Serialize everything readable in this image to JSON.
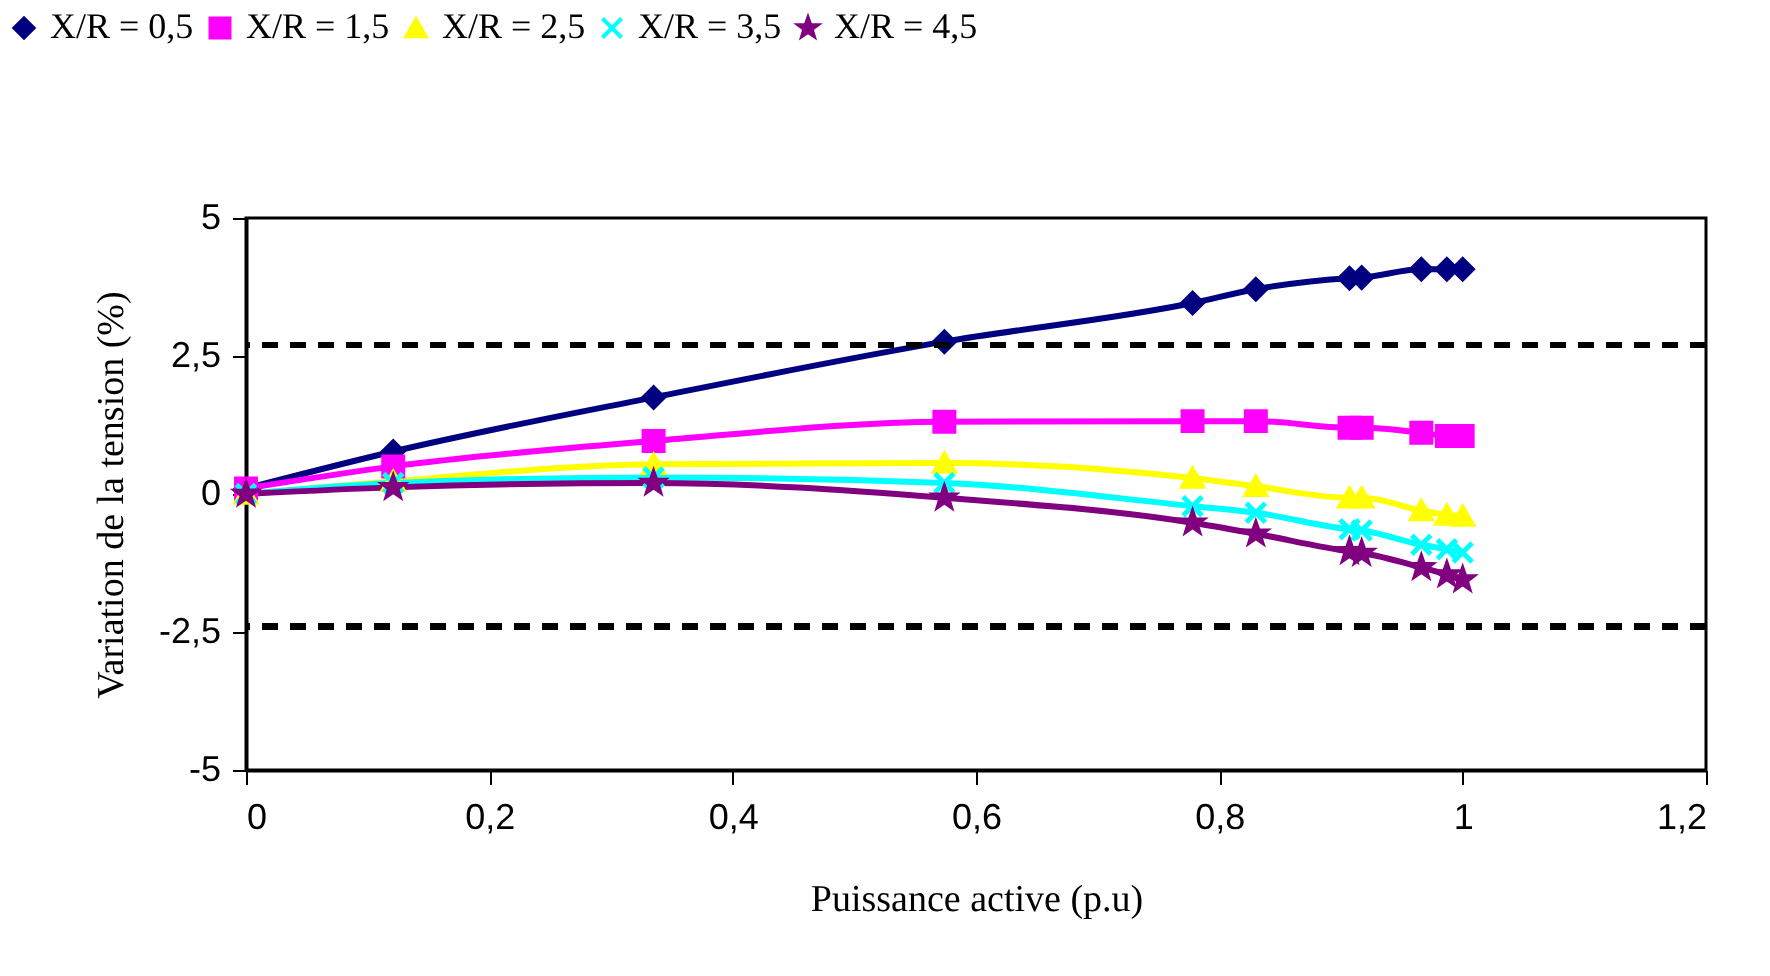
{
  "chart_data": {
    "type": "line",
    "xlabel": "Puissance active (p.u)",
    "ylabel": "Variation de la tension (%)",
    "x": [
      0,
      0.121,
      0.335,
      0.574,
      0.778,
      0.83,
      0.907,
      0.917,
      0.966,
      0.987,
      1.0
    ],
    "series": [
      {
        "name": "X/R = 0,5",
        "color": "#000080",
        "marker": "diamond",
        "values": [
          0.1,
          0.77,
          1.75,
          2.76,
          3.46,
          3.71,
          3.91,
          3.92,
          4.07,
          4.07,
          4.07
        ]
      },
      {
        "name": "X/R = 1,5",
        "color": "#ff00ff",
        "marker": "square",
        "values": [
          0.1,
          0.5,
          0.96,
          1.31,
          1.32,
          1.32,
          1.2,
          1.2,
          1.11,
          1.05,
          1.05
        ]
      },
      {
        "name": "X/R = 2,5",
        "color": "#ffff00",
        "marker": "triangle",
        "values": [
          0,
          0.23,
          0.54,
          0.56,
          0.29,
          0.14,
          -0.07,
          -0.07,
          -0.3,
          -0.38,
          -0.4
        ]
      },
      {
        "name": "X/R = 3,5",
        "color": "#00ffff",
        "marker": "cross",
        "values": [
          0,
          0.2,
          0.3,
          0.2,
          -0.22,
          -0.34,
          -0.64,
          -0.66,
          -0.92,
          -1.0,
          -1.06
        ]
      },
      {
        "name": "X/R = 4,5",
        "color": "#800080",
        "marker": "star",
        "values": [
          0,
          0.12,
          0.2,
          -0.07,
          -0.52,
          -0.72,
          -1.04,
          -1.07,
          -1.33,
          -1.46,
          -1.55
        ]
      }
    ],
    "xlim": [
      0,
      1.2
    ],
    "xticks": [
      0,
      {
        "value": 0.2,
        "label": "0,2"
      },
      {
        "value": 0.4,
        "label": "0,4"
      },
      {
        "value": 0.6,
        "label": "0,6"
      },
      {
        "value": 0.8,
        "label": "0,8"
      },
      1,
      {
        "value": 1.2,
        "label": "1,2"
      }
    ],
    "ylim": [
      -5,
      5
    ],
    "yticks": [
      -5,
      {
        "value": -2.5,
        "label": "-2,5"
      },
      0,
      {
        "value": 2.5,
        "label": "2,5"
      },
      5
    ],
    "ref_lines": [
      {
        "axis": "y",
        "value": 2.7,
        "color": "#000000",
        "line_style": "dashed"
      },
      {
        "axis": "y",
        "value": -2.4,
        "color": "#000000",
        "line_style": "dashed"
      }
    ],
    "grid": false,
    "legend": "top",
    "line_style": "solid"
  }
}
